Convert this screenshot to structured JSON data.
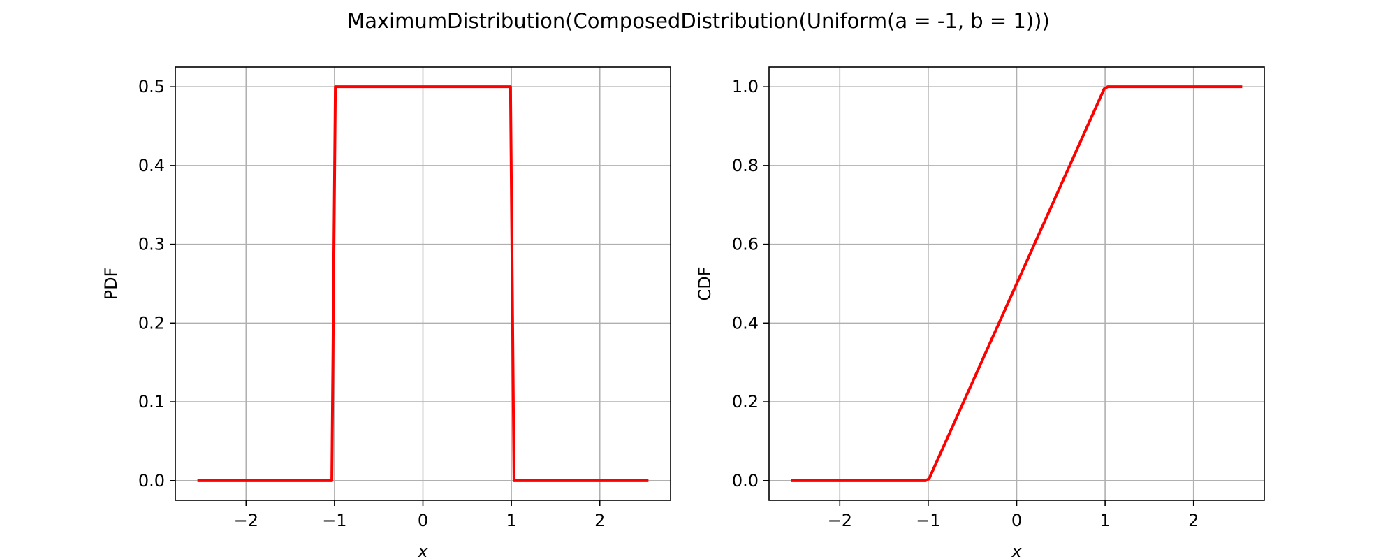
{
  "figure": {
    "title": "MaximumDistribution(ComposedDistribution(Uniform(a = -1, b = 1)))"
  },
  "colors": {
    "series": "#ff0000",
    "grid": "#b0b0b0",
    "frame": "#000000",
    "background": "#ffffff"
  },
  "chart_data": [
    {
      "type": "line",
      "title": "",
      "xlabel": "x",
      "ylabel": "PDF",
      "xlim": [
        -2.8,
        2.8
      ],
      "ylim": [
        -0.025,
        0.525
      ],
      "xticks": [
        -2,
        -1,
        0,
        1,
        2
      ],
      "xtick_labels": [
        "−2",
        "−1",
        "0",
        "1",
        "2"
      ],
      "yticks": [
        0.0,
        0.1,
        0.2,
        0.3,
        0.4,
        0.5
      ],
      "ytick_labels": [
        "0.0",
        "0.1",
        "0.2",
        "0.3",
        "0.4",
        "0.5"
      ],
      "grid": true,
      "series": [
        {
          "color": "#ff0000",
          "x": [
            -2.55,
            -1.03,
            -0.99,
            0.99,
            1.03,
            2.55
          ],
          "y": [
            0.0,
            0.0,
            0.5,
            0.5,
            0.0,
            0.0
          ]
        }
      ]
    },
    {
      "type": "line",
      "title": "",
      "xlabel": "x",
      "ylabel": "CDF",
      "xlim": [
        -2.8,
        2.8
      ],
      "ylim": [
        -0.05,
        1.05
      ],
      "xticks": [
        -2,
        -1,
        0,
        1,
        2
      ],
      "xtick_labels": [
        "−2",
        "−1",
        "0",
        "1",
        "2"
      ],
      "yticks": [
        0.0,
        0.2,
        0.4,
        0.6,
        0.8,
        1.0
      ],
      "ytick_labels": [
        "0.0",
        "0.2",
        "0.4",
        "0.6",
        "0.8",
        "1.0"
      ],
      "grid": true,
      "series": [
        {
          "color": "#ff0000",
          "x": [
            -2.55,
            -1.03,
            -0.99,
            0.99,
            1.03,
            2.55
          ],
          "y": [
            0.0,
            0.0,
            0.005,
            0.995,
            1.0,
            1.0
          ]
        }
      ]
    }
  ]
}
